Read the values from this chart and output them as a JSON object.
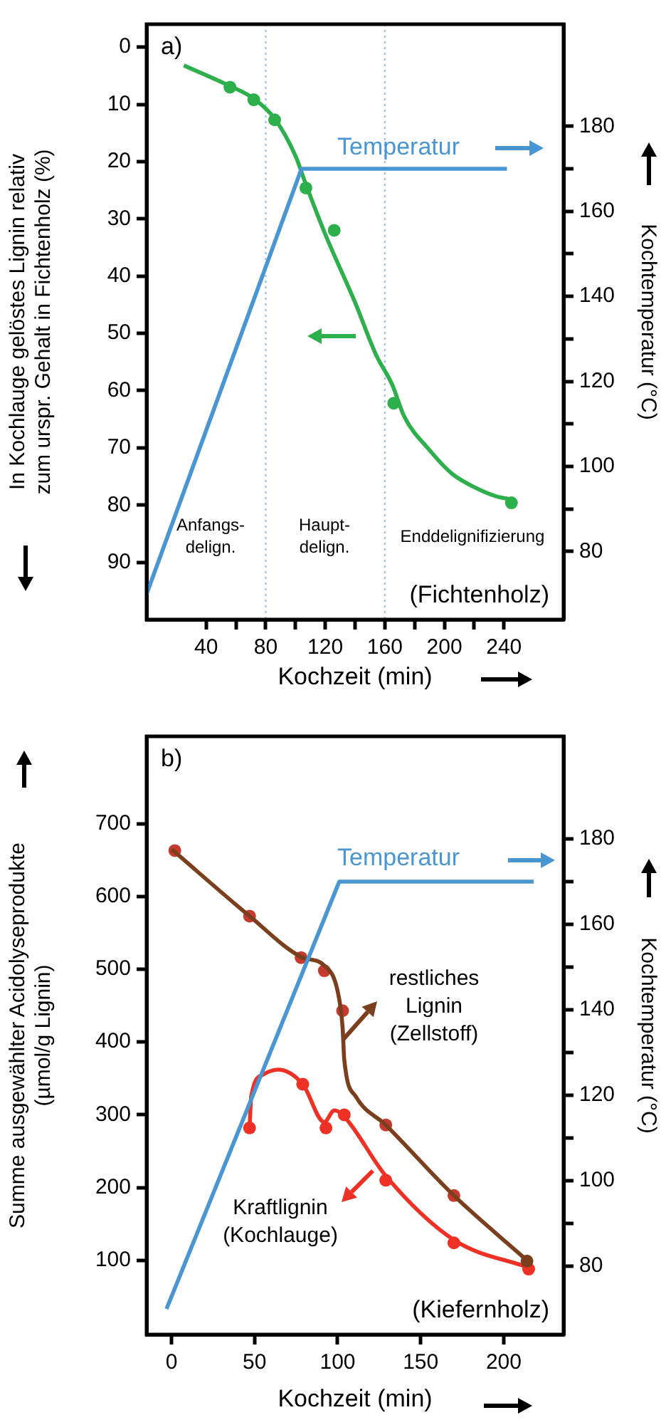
{
  "chart_data": [
    {
      "type": "line",
      "xlabel": "Kochzeit (min)",
      "ylabel": "In Kochlauge gelöstes Lignin relativ\nzum urspr. Gehalt in Fichtenholz (%)",
      "y2label": "Kochtemperatur (°C)",
      "xlim": [
        0,
        280
      ],
      "xticks": [
        40,
        {
          "value": 60,
          "label": null
        },
        80,
        {
          "value": 100,
          "label": null
        },
        120,
        {
          "value": 140,
          "label": null
        },
        160,
        {
          "value": 180,
          "label": null
        },
        200,
        {
          "value": 220,
          "label": null
        },
        240
      ],
      "ylim": [
        100,
        -4
      ],
      "yticks": [
        0,
        10,
        20,
        30,
        40,
        50,
        60,
        70,
        80,
        90
      ],
      "y2lim": [
        64,
        204
      ],
      "y2ticks": [
        80,
        {
          "value": 90,
          "label": null
        },
        100,
        {
          "value": 110,
          "label": null
        },
        120,
        {
          "value": 130,
          "label": null
        },
        140,
        {
          "value": 150,
          "label": null
        },
        160,
        {
          "value": 170,
          "label": null
        },
        180
      ],
      "grid": false,
      "legend": "top right",
      "ref_lines": [
        {
          "axis": "x",
          "value": 80,
          "color": "#9dc3e6",
          "line_style": "dotted"
        },
        {
          "axis": "x",
          "value": 160,
          "color": "#9dc3e6",
          "line_style": "dotted"
        }
      ],
      "annotations": [
        "a)",
        "(Fichtenholz)",
        "Anfangs-\ndelign.",
        "Haupt-\ndelign.",
        "Enddelignifizierung"
      ],
      "series": [
        {
          "name": "Temperatur",
          "type": "line",
          "axis": "y2",
          "color": "#4a96d2",
          "marker": "none",
          "x": [
            0,
            104,
            242
          ],
          "values": [
            70,
            170,
            170
          ]
        },
        {
          "type": "line",
          "color": "#2db04b",
          "marker": "none",
          "x": [
            25,
            56,
            72,
            86,
            100,
            107,
            120,
            140,
            154,
            165,
            173,
            190,
            205,
            221,
            235,
            245
          ],
          "values": [
            3.2,
            6.8,
            9,
            12.5,
            19,
            24,
            32.7,
            44.6,
            53.7,
            59,
            64.5,
            70.4,
            74.5,
            77,
            78.5,
            79
          ]
        },
        {
          "type": "scatter",
          "color": "#2db04b",
          "marker": "circle",
          "x": [
            56,
            72,
            86,
            107,
            126,
            166,
            245
          ],
          "values": [
            7,
            9.2,
            12.7,
            24.6,
            32,
            62.2,
            79.6
          ]
        }
      ]
    },
    {
      "type": "line",
      "xlabel": "Kochzeit (min)",
      "ylabel": "Summe ausgewählter Acidolyseprodukte\n(µmol/g Lignin)",
      "y2label": "Kochtemperatur (°C)",
      "xlim": [
        -15,
        236
      ],
      "xticks": [
        0,
        50,
        100,
        150,
        200
      ],
      "ylim": [
        -2,
        820
      ],
      "yticks": [
        100,
        200,
        300,
        400,
        500,
        600,
        700
      ],
      "y2lim": [
        64,
        204
      ],
      "y2ticks": [
        80,
        {
          "value": 90,
          "label": null
        },
        100,
        {
          "value": 110,
          "label": null
        },
        120,
        {
          "value": 130,
          "label": null
        },
        140,
        {
          "value": 150,
          "label": null
        },
        160,
        {
          "value": 170,
          "label": null
        },
        180
      ],
      "grid": false,
      "legend": "top right",
      "annotations": [
        "b)",
        "(Kiefernholz)",
        {
          "text": "restliches\nLignin\n(Zellstoff)",
          "x": 103,
          "y": 404
        },
        {
          "text": "Kraftlignin\n(Kochlauge)",
          "x": 121,
          "y": 224
        }
      ],
      "series": [
        {
          "name": "Temperatur",
          "type": "line",
          "axis": "y2",
          "color": "#4a96d2",
          "marker": "none",
          "x": [
            -3,
            101,
            218
          ],
          "values": [
            70,
            170,
            170
          ]
        },
        {
          "type": "line",
          "color": "#7b3f1e",
          "marker": "none",
          "x": [
            0,
            47,
            78,
            92,
            100,
            103,
            104,
            111,
            129,
            170,
            214
          ],
          "values": [
            665,
            573,
            517,
            505,
            470,
            420,
            376,
            325,
            286,
            189,
            100
          ]
        },
        {
          "type": "scatter",
          "color": "#c73a2e",
          "colors": [
            "#c73a2e",
            "#c73a2e",
            "#c73a2e",
            "#c73a2e",
            "#c73a2e",
            "#c73a2e",
            "#c73a2e",
            "#7b3f1e"
          ],
          "marker": "circle",
          "x": [
            2,
            47,
            78,
            92,
            103,
            129,
            170,
            214
          ],
          "values": [
            663,
            573,
            516,
            498,
            443,
            286,
            189,
            99
          ]
        },
        {
          "type": "line",
          "color": "#ee3124",
          "marker": "none",
          "x": [
            47,
            48,
            55,
            64,
            79,
            92,
            98,
            103,
            129,
            170,
            215
          ],
          "values": [
            282,
            325,
            355,
            362,
            342,
            290,
            306,
            300,
            216,
            128,
            90
          ]
        },
        {
          "type": "scatter",
          "color": "#ee3124",
          "marker": "circle",
          "x": [
            47,
            79,
            93,
            104,
            129,
            170,
            215
          ],
          "values": [
            282,
            342,
            282,
            300,
            210,
            124,
            88
          ]
        }
      ]
    }
  ]
}
